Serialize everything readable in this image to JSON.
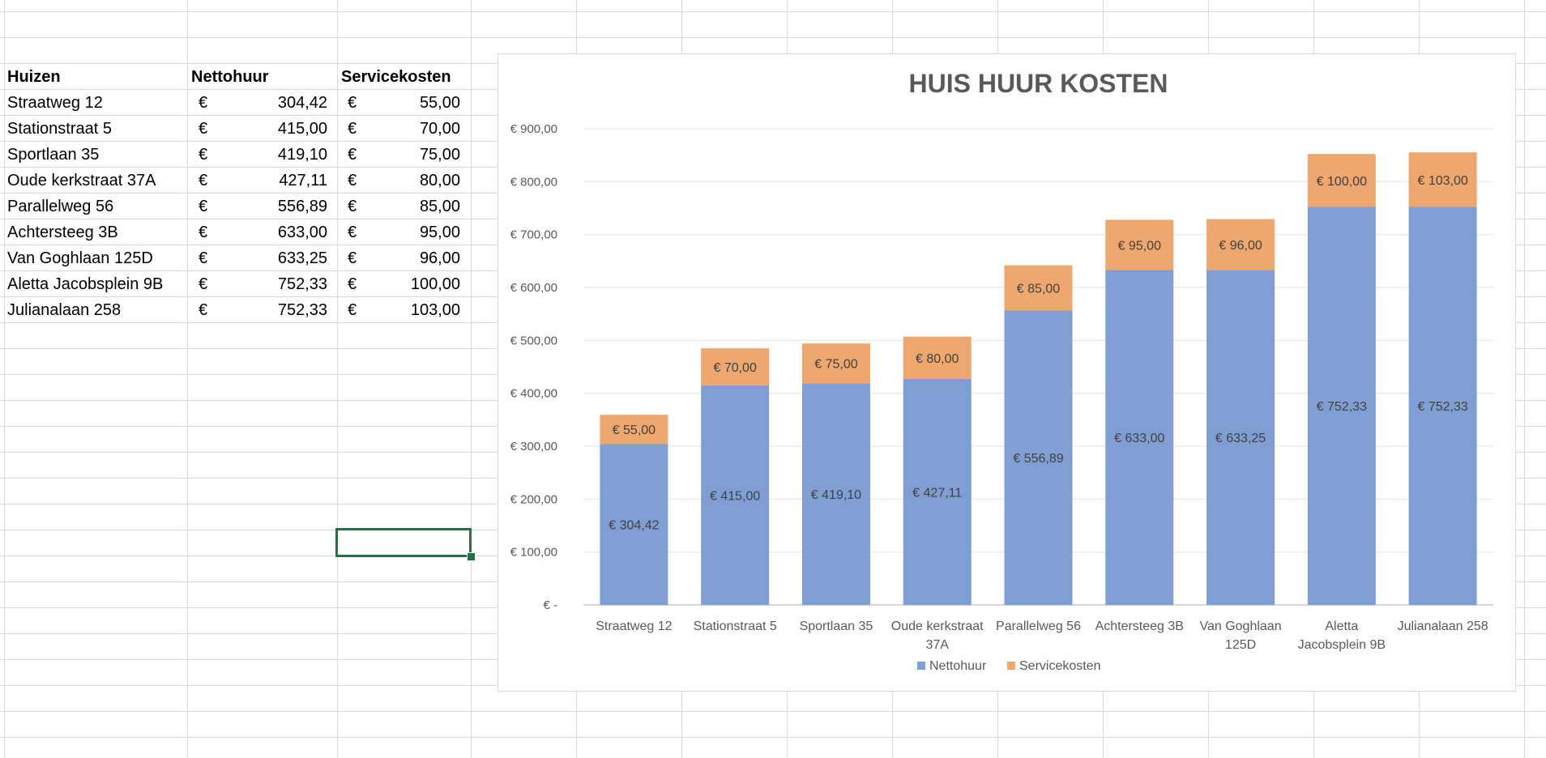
{
  "sheet": {
    "headers": {
      "col_a": "Huizen",
      "col_b": "Nettohuur",
      "col_c": "Servicekosten"
    },
    "currency_symbol": "€",
    "rows": [
      {
        "house": "Straatweg 12",
        "nettohuur": "304,42",
        "servicekosten": "55,00"
      },
      {
        "house": "Stationstraat 5",
        "nettohuur": "415,00",
        "servicekosten": "70,00"
      },
      {
        "house": "Sportlaan 35",
        "nettohuur": "419,10",
        "servicekosten": "75,00"
      },
      {
        "house": "Oude kerkstraat 37A",
        "nettohuur": "427,11",
        "servicekosten": "80,00"
      },
      {
        "house": "Parallelweg 56",
        "nettohuur": "556,89",
        "servicekosten": "85,00"
      },
      {
        "house": "Achtersteeg 3B",
        "nettohuur": "633,00",
        "servicekosten": "95,00"
      },
      {
        "house": "Van Goghlaan 125D",
        "nettohuur": "633,25",
        "servicekosten": "96,00"
      },
      {
        "house": "Aletta Jacobsplein 9B",
        "nettohuur": "752,33",
        "servicekosten": "100,00"
      },
      {
        "house": "Julianalaan 258",
        "nettohuur": "752,33",
        "servicekosten": "103,00"
      }
    ]
  },
  "colors": {
    "nettohuur": "#7f9fd4",
    "servicekosten": "#eea86f",
    "gridline": "#d9d9d9",
    "selection": "#217346"
  },
  "chart_data": {
    "type": "bar",
    "stacked": true,
    "title": "HUIS HUUR KOSTEN",
    "categories": [
      [
        "Straatweg 12"
      ],
      [
        "Stationstraat 5"
      ],
      [
        "Sportlaan 35"
      ],
      [
        "Oude kerkstraat",
        "37A"
      ],
      [
        "Parallelweg 56"
      ],
      [
        "Achtersteeg 3B"
      ],
      [
        "Van Goghlaan",
        "125D"
      ],
      [
        "Aletta",
        "Jacobsplein 9B"
      ],
      [
        "Julianalaan 258"
      ]
    ],
    "series": [
      {
        "name": "Nettohuur",
        "values": [
          304.42,
          415.0,
          419.1,
          427.11,
          556.89,
          633.0,
          633.25,
          752.33,
          752.33
        ],
        "labels": [
          "€ 304,42",
          "€ 415,00",
          "€ 419,10",
          "€ 427,11",
          "€ 556,89",
          "€ 633,00",
          "€ 633,25",
          "€ 752,33",
          "€ 752,33"
        ]
      },
      {
        "name": "Servicekosten",
        "values": [
          55,
          70,
          75,
          80,
          85,
          95,
          96,
          100,
          103
        ],
        "labels": [
          "€ 55,00",
          "€ 70,00",
          "€ 75,00",
          "€ 80,00",
          "€ 85,00",
          "€ 95,00",
          "€ 96,00",
          "€ 100,00",
          "€ 103,00"
        ]
      }
    ],
    "ylim": [
      0,
      900
    ],
    "yticks": [
      0,
      100,
      200,
      300,
      400,
      500,
      600,
      700,
      800,
      900
    ],
    "ytick_labels": [
      "€ -",
      "€ 100,00",
      "€ 200,00",
      "€ 300,00",
      "€ 400,00",
      "€ 500,00",
      "€ 600,00",
      "€ 700,00",
      "€ 800,00",
      "€ 900,00"
    ],
    "grid": true,
    "legend_position": "bottom"
  }
}
